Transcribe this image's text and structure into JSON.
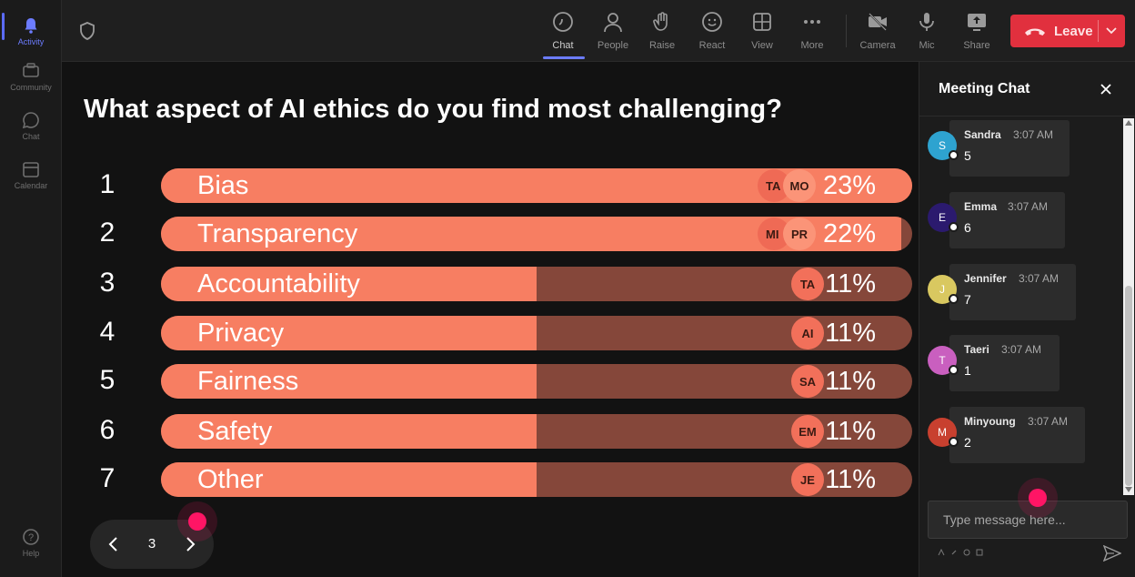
{
  "rail": {
    "items": [
      {
        "label": "Activity",
        "icon": "bell-icon"
      },
      {
        "label": "Community",
        "icon": "community-icon"
      },
      {
        "label": "Chat",
        "icon": "chat-icon"
      },
      {
        "label": "Calendar",
        "icon": "calendar-icon"
      }
    ],
    "help_label": "Help"
  },
  "toolbar": {
    "chat_label": "Chat",
    "people_label": "People",
    "raise_label": "Raise",
    "react_label": "React",
    "view_label": "View",
    "more_label": "More",
    "camera_label": "Camera",
    "mic_label": "Mic",
    "share_label": "Share",
    "leave_label": "Leave"
  },
  "poll": {
    "question": "What aspect of AI ethics do you find most challenging?",
    "options": [
      {
        "num": "1",
        "label": "Bias",
        "pct": "23%",
        "fill": 1.0,
        "voters": [
          "TA",
          "MO"
        ]
      },
      {
        "num": "2",
        "label": "Transparency",
        "pct": "22%",
        "fill": 0.985,
        "voters": [
          "MI",
          "PR"
        ]
      },
      {
        "num": "3",
        "label": "Accountability",
        "pct": "11%",
        "fill": 0.5,
        "voters": [
          "TA"
        ]
      },
      {
        "num": "4",
        "label": "Privacy",
        "pct": "11%",
        "fill": 0.5,
        "voters": [
          "AI"
        ]
      },
      {
        "num": "5",
        "label": "Fairness",
        "pct": "11%",
        "fill": 0.5,
        "voters": [
          "SA"
        ]
      },
      {
        "num": "6",
        "label": "Safety",
        "pct": "11%",
        "fill": 0.5,
        "voters": [
          "EM"
        ]
      },
      {
        "num": "7",
        "label": "Other",
        "pct": "11%",
        "fill": 0.5,
        "voters": [
          "JE"
        ]
      }
    ],
    "page": "3"
  },
  "chat": {
    "title": "Meeting Chat",
    "messages": [
      {
        "initial": "S",
        "name": "Sandra",
        "time": "3:07 AM",
        "text": "5",
        "color": "#2ea3d0"
      },
      {
        "initial": "E",
        "name": "Emma",
        "time": "3:07 AM",
        "text": "6",
        "color": "#2b1a6e"
      },
      {
        "initial": "J",
        "name": "Jennifer",
        "time": "3:07 AM",
        "text": "7",
        "color": "#d9c860"
      },
      {
        "initial": "T",
        "name": "Taeri",
        "time": "3:07 AM",
        "text": "1",
        "color": "#c95fbf"
      },
      {
        "initial": "M",
        "name": "Minyoung",
        "time": "3:07 AM",
        "text": "2",
        "color": "#c8402f"
      }
    ],
    "input_placeholder": "Type message here..."
  },
  "colors": {
    "accent": "#5b6bff",
    "leave": "#e1303e",
    "bar_fill": "#f77e62",
    "bar_track": "#85473a",
    "cursor": "#ff1565"
  }
}
